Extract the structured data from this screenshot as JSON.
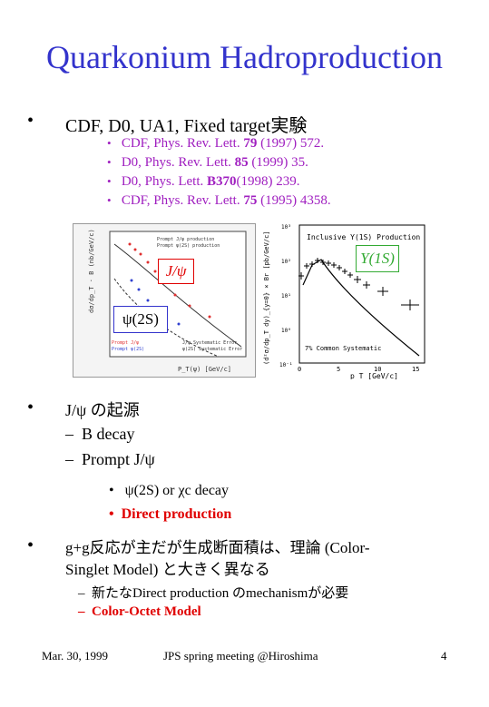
{
  "title": "Quarkonium Hadroproduction",
  "bullet1": "CDF, D0, UA1, Fixed target実験",
  "citations": [
    {
      "pre": "CDF, Phys. Rev. Lett.",
      "vol": "79",
      "post": "(1997) 572."
    },
    {
      "pre": "D0, Phys. Rev. Lett.",
      "vol": "85",
      "post": "(1999) 35."
    },
    {
      "pre": "D0, Phys. Lett.",
      "vol": "B370",
      "post": "(1998) 239."
    },
    {
      "pre": "CDF, Phys. Rev. Lett.",
      "vol": "75",
      "post": "(1995) 4358."
    }
  ],
  "left_plot": {
    "ylabel": "dσ/dp_T · B (nb/GeV/c)",
    "xlabel": "P_T(ψ) [GeV/c]",
    "legend": [
      "Prompt J/ψ production",
      "Prompt ψ(2S) production"
    ],
    "legend2": [
      "Prompt J/ψ",
      "Prompt ψ(2S)",
      "J/ψ Systematic Error",
      "ψ(2S) Systematic Error"
    ],
    "label_jpsi": "J/ψ",
    "label_psi2s": "ψ(2S)"
  },
  "right_plot": {
    "title": "Inclusive Υ(1S) Production",
    "label": "Υ(1S)",
    "ylabel": "(d²σ/dp_T dy)_{y=0} × Br [pb/GeV/c]",
    "xlabel": "p_T [GeV/c]",
    "note": "7% Common Systematic",
    "x_ticks": [
      "0",
      "5",
      "10",
      "15"
    ],
    "y_ticks": [
      "10³",
      "10²",
      "10¹",
      "10⁰",
      "10⁻¹"
    ]
  },
  "bullet2": "J/ψ の起源",
  "dash_items": [
    "B decay",
    "Prompt J/ψ"
  ],
  "sub_items": [
    "ψ(2S) or χc decay"
  ],
  "sub_red": "Direct production",
  "bullet3_line1": "g+g反応が主だが生成断面積は、理論 (Color-",
  "bullet3_line2": "Singlet Model) と大きく異なる",
  "dash3": "新たなDirect production のmechanismが必要",
  "dash3_red": "Color-Octet Model",
  "footer": {
    "date": "Mar. 30, 1999",
    "meeting": "JPS spring meeting @Hiroshima",
    "page": "4"
  },
  "colors": {
    "title": "#3333cc",
    "citation": "#a020c0",
    "red": "#e00000",
    "green_box": "#33aa33"
  }
}
